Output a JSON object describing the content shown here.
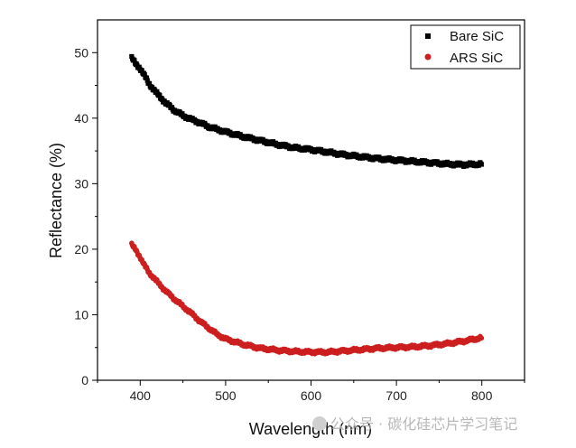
{
  "chart_data": {
    "type": "scatter",
    "title": "",
    "xlabel": "Wavelength (nm)",
    "ylabel": "Reflectance (%)",
    "xlim": [
      350,
      850
    ],
    "ylim": [
      0,
      55
    ],
    "xticks": [
      400,
      500,
      600,
      700,
      800
    ],
    "yticks": [
      0,
      10,
      20,
      30,
      40,
      50
    ],
    "grid": false,
    "legend_position": "top-right",
    "series": [
      {
        "name": "Bare SiC",
        "color": "#000000",
        "marker": "square",
        "x": [
          390,
          395,
          400,
          405,
          410,
          420,
          430,
          440,
          450,
          460,
          470,
          480,
          500,
          520,
          540,
          560,
          580,
          600,
          620,
          640,
          660,
          680,
          700,
          720,
          740,
          760,
          780,
          800
        ],
        "y": [
          49.2,
          48.2,
          47.6,
          46.5,
          45.3,
          43.7,
          42.3,
          41.2,
          40.4,
          39.8,
          39.3,
          38.7,
          37.9,
          37.2,
          36.6,
          36.0,
          35.5,
          35.2,
          34.8,
          34.4,
          34.1,
          33.8,
          33.6,
          33.4,
          33.2,
          33.0,
          32.9,
          33.0
        ]
      },
      {
        "name": "ARS SiC",
        "color": "#cc1f1f",
        "marker": "circle",
        "x": [
          390,
          395,
          400,
          405,
          410,
          420,
          430,
          440,
          450,
          460,
          470,
          480,
          490,
          500,
          520,
          540,
          560,
          580,
          600,
          620,
          640,
          660,
          680,
          700,
          720,
          740,
          760,
          780,
          800
        ],
        "y": [
          20.7,
          19.8,
          18.8,
          17.5,
          16.5,
          15.0,
          13.6,
          12.4,
          11.3,
          10.2,
          9.0,
          8.0,
          7.0,
          6.3,
          5.5,
          4.9,
          4.6,
          4.4,
          4.3,
          4.3,
          4.5,
          4.7,
          4.9,
          5.0,
          5.1,
          5.3,
          5.6,
          6.0,
          6.5
        ]
      }
    ]
  },
  "watermark": {
    "text": "公众号 · 碳化硅芯片学习笔记",
    "icon": "wechat-icon"
  }
}
